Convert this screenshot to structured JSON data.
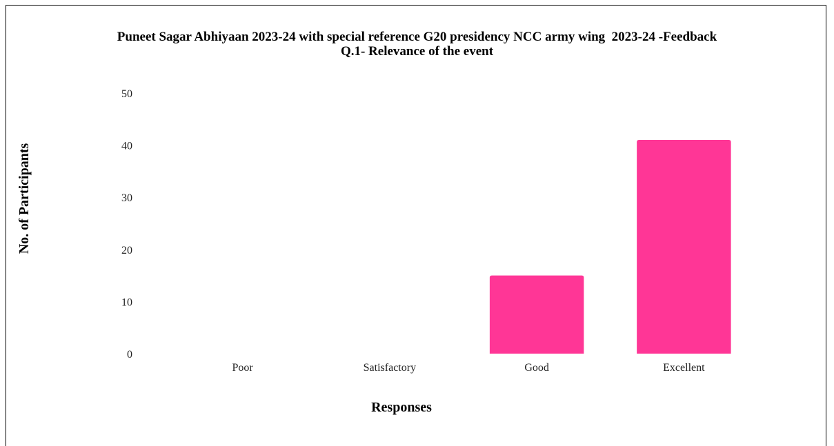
{
  "chart_data": {
    "type": "bar",
    "title": "Puneet Sagar Abhiyaan 2023-24 with special reference G20 presidency NCC army wing  2023-24 -Feedback",
    "subtitle": "Q.1- Relevance of the event",
    "xlabel": "Responses",
    "ylabel": "No. of Participants",
    "categories": [
      "Poor",
      "Satisfactory",
      "Good",
      "Excellent"
    ],
    "values": [
      0,
      0,
      15,
      41
    ],
    "ylim": [
      0,
      50
    ],
    "yticks": [
      0,
      10,
      20,
      30,
      40,
      50
    ],
    "grid": false,
    "legend": "none",
    "bar_color": "#ff3696"
  }
}
